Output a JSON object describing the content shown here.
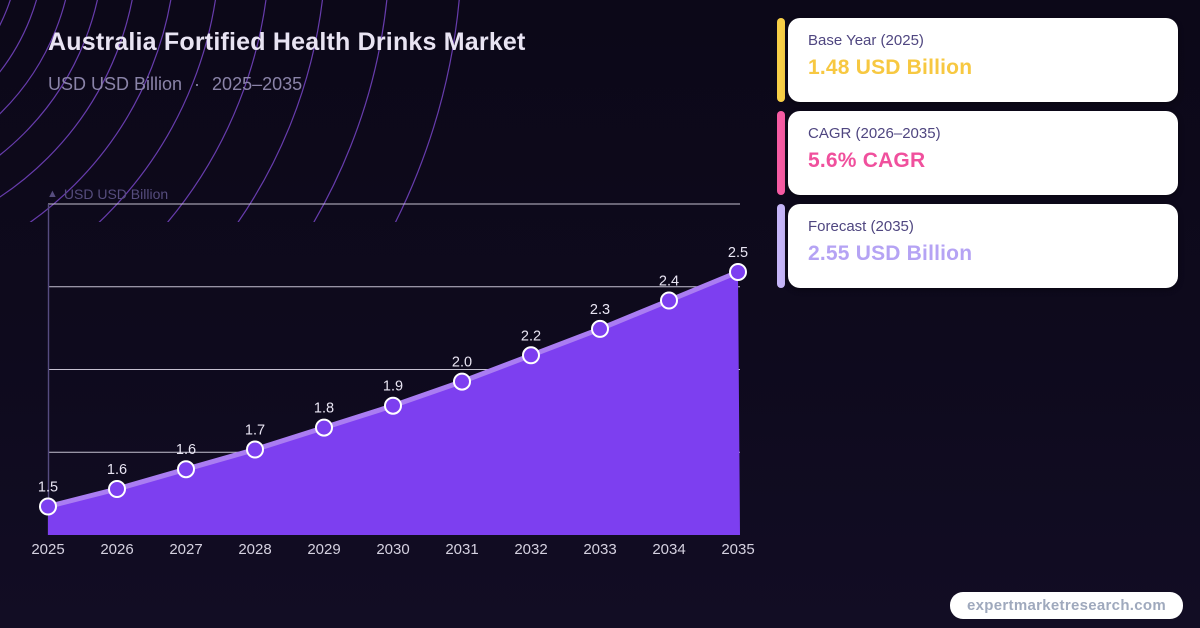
{
  "header": {
    "title": "Australia Fortified Health Drinks Market",
    "subtitle_unit": "USD USD Billion",
    "subtitle_separator": "·",
    "subtitle_range": "2025–2035"
  },
  "stats": [
    {
      "label": "Base Year (2025)",
      "value": "1.48 USD Billion",
      "accent_color": "#f8cf47",
      "value_color": "#f7c841"
    },
    {
      "label": "CAGR (2026–2035)",
      "value": "5.6% CAGR",
      "accent_color": "#f65ba3",
      "value_color": "#f0509d"
    },
    {
      "label": "Forecast (2035)",
      "value": "2.55 USD Billion",
      "accent_color": "#c5b5f8",
      "value_color": "#b5a3f4"
    }
  ],
  "chart_data": {
    "type": "area",
    "title": "Australia Fortified Health Drinks Market",
    "axis_label": "USD USD Billion",
    "up_arrow_icon": "▲",
    "categories": [
      2025,
      2026,
      2027,
      2028,
      2029,
      2030,
      2031,
      2032,
      2033,
      2034,
      2035
    ],
    "values": [
      1.48,
      1.56,
      1.65,
      1.74,
      1.84,
      1.94,
      2.05,
      2.17,
      2.29,
      2.42,
      2.55
    ],
    "point_labels": [
      "1.5",
      "1.6",
      "1.6",
      "1.7",
      "1.8",
      "1.9",
      "2.0",
      "2.2",
      "2.3",
      "2.4",
      "2.5"
    ],
    "ylim": [
      1.35,
      2.86
    ],
    "grid": "horizontal",
    "legend": "none",
    "colors": {
      "fill": "#7d3ff0",
      "line": "#aa7df2",
      "marker_fill": "#7d3ff0",
      "marker_stroke": "#ffffff",
      "grid": "#d9d5e5",
      "axis": "#564c80",
      "point_label": "#e9e5f3",
      "tick_label": "#d5d1e0",
      "decor_circle": "#8a50e6"
    }
  },
  "footer": {
    "badge": "expertmarketresearch.com"
  }
}
